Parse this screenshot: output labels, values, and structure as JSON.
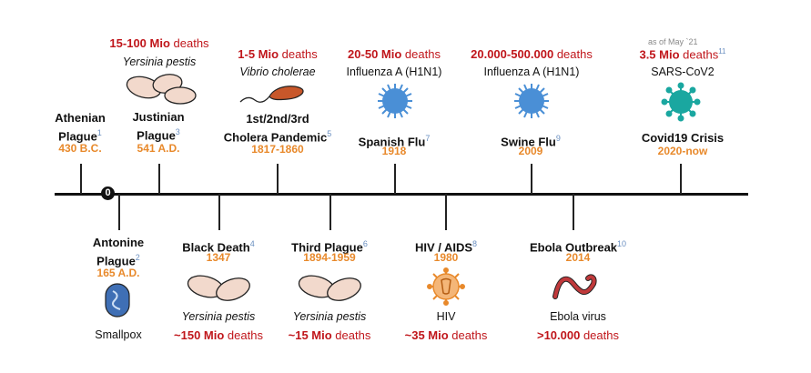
{
  "axis": {
    "origin_label": "0"
  },
  "events_top": [
    {
      "name": "Athenian Plague",
      "line1": "Athenian",
      "line2": "Plague",
      "ref": "1",
      "date": "430 B.C."
    },
    {
      "name": "Justinian Plague",
      "line1": "Justinian",
      "line2": "Plague",
      "ref": "3",
      "date": "541 A.D.",
      "deaths_num": "15-100 Mio",
      "deaths_word": " deaths",
      "pathogen": "Yersinia pestis"
    },
    {
      "name": "1st/2nd/3rd Cholera Pandemic",
      "line1": "1st/2nd/3rd",
      "line2": "Cholera Pandemic",
      "ref": "5",
      "date": "1817-1860",
      "deaths_num": "1-5 Mio",
      "deaths_word": " deaths",
      "pathogen": "Vibrio cholerae"
    },
    {
      "name": "Spanish Flu",
      "line1": "Spanish Flu",
      "ref": "7",
      "date": "1918",
      "deaths_num": "20-50 Mio",
      "deaths_word": " deaths",
      "pathogen": "Influenza A (H1N1)"
    },
    {
      "name": "Swine Flu",
      "line1": "Swine Flu",
      "ref": "9",
      "date": "2009",
      "deaths_num": "20.000-500.000",
      "deaths_word": " deaths",
      "pathogen": "Influenza A (H1N1)"
    },
    {
      "name": "Covid19 Crisis",
      "line1": "Covid19 Crisis",
      "date": "2020-now",
      "note": "as of May `21",
      "deaths_num": "3.5 Mio",
      "deaths_word": " deaths",
      "ref": "11",
      "pathogen": "SARS-CoV2"
    }
  ],
  "events_bottom": [
    {
      "name": "Antonine Plague",
      "line1": "Antonine",
      "line2": "Plague",
      "ref": "2",
      "date": "165 A.D.",
      "pathogen": "Smallpox"
    },
    {
      "name": "Black Death",
      "line1": "Black Death",
      "ref": "4",
      "date": "1347",
      "pathogen": "Yersinia pestis",
      "deaths_num": "~150 Mio",
      "deaths_word": " deaths"
    },
    {
      "name": "Third Plague",
      "line1": "Third Plague",
      "ref": "6",
      "date": "1894-1959",
      "pathogen": "Yersinia pestis",
      "deaths_num": "~15 Mio",
      "deaths_word": " deaths"
    },
    {
      "name": "HIV / AIDS",
      "line1": "HIV / AIDS",
      "ref": "8",
      "date": "1980",
      "pathogen": "HIV",
      "deaths_num": "~35 Mio",
      "deaths_word": " deaths"
    },
    {
      "name": "Ebola Outbreak",
      "line1": "Ebola Outbreak",
      "ref": "10",
      "date": "2014",
      "pathogen": "Ebola virus",
      "deaths_num": ">10.000",
      "deaths_word": " deaths"
    }
  ],
  "colors": {
    "deaths": "#c0161b",
    "date": "#e8892b",
    "bacteria": "#f2d9cc",
    "vibrio": "#c8572a",
    "flu": "#4a8fd6",
    "covid": "#1aa7a0",
    "hiv": "#e8892b",
    "smallpox": "#3f6fb5",
    "ebola": "#c0393b"
  }
}
